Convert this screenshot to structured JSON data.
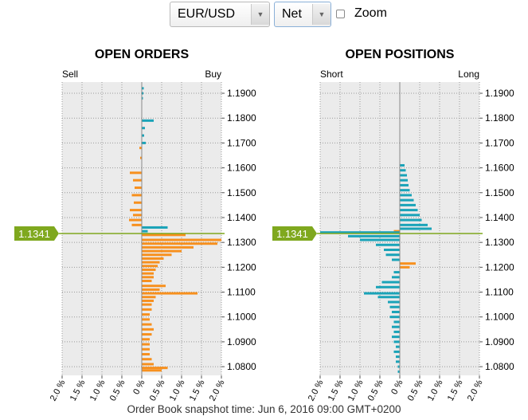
{
  "controls": {
    "pair_select": {
      "value": "EUR/USD"
    },
    "mode_select": {
      "value": "Net"
    },
    "zoom": {
      "label": "Zoom",
      "checked": false
    }
  },
  "current_price": "1.1341",
  "footer": "Order Book snapshot time: Jun 6, 2016 09:00 GMT+0200",
  "colors": {
    "up": "#1aa3b8",
    "down": "#f7901e",
    "price_line": "#7fa81e",
    "grid_bg": "#ebebeb"
  },
  "chart_data": [
    {
      "type": "bar",
      "orientation": "horizontal-diverging",
      "title": "OPEN ORDERS",
      "left_label": "Sell",
      "right_label": "Buy",
      "y_ticks": [
        "1.1900",
        "1.1800",
        "1.1700",
        "1.1600",
        "1.1500",
        "1.1400",
        "1.1300",
        "1.1200",
        "1.1100",
        "1.1000",
        "1.0900",
        "1.0800"
      ],
      "x_tick_labels": [
        "2.0 %",
        "1.5 %",
        "1.0 %",
        "0.5 %",
        "0 %",
        "0.5 %",
        "1.0 %",
        "1.5 %",
        "2.0 %"
      ],
      "ylim": [
        1.0765,
        1.1945
      ],
      "xlim": [
        -2.0,
        2.0
      ],
      "grid": true,
      "bars": [
        {
          "price": 1.192,
          "value": 0.05
        },
        {
          "price": 1.19,
          "value": 0.04
        },
        {
          "price": 1.188,
          "value": 0.03
        },
        {
          "price": 1.179,
          "value": 0.3
        },
        {
          "price": 1.176,
          "value": 0.08
        },
        {
          "price": 1.173,
          "value": 0.06
        },
        {
          "price": 1.17,
          "value": 0.1
        },
        {
          "price": 1.168,
          "value": -0.06
        },
        {
          "price": 1.164,
          "value": -0.04
        },
        {
          "price": 1.158,
          "value": -0.3
        },
        {
          "price": 1.155,
          "value": -0.22
        },
        {
          "price": 1.152,
          "value": -0.18
        },
        {
          "price": 1.149,
          "value": -0.25
        },
        {
          "price": 1.146,
          "value": -0.2
        },
        {
          "price": 1.143,
          "value": -0.3
        },
        {
          "price": 1.141,
          "value": -0.22
        },
        {
          "price": 1.139,
          "value": -0.32
        },
        {
          "price": 1.137,
          "value": -0.25
        },
        {
          "price": 1.136,
          "value": 0.65
        },
        {
          "price": 1.1345,
          "value": 0.15
        },
        {
          "price": 1.133,
          "value": 1.1
        },
        {
          "price": 1.131,
          "value": 2.0
        },
        {
          "price": 1.1295,
          "value": 1.9
        },
        {
          "price": 1.128,
          "value": 1.3
        },
        {
          "price": 1.1265,
          "value": 1.0
        },
        {
          "price": 1.125,
          "value": 0.75
        },
        {
          "price": 1.1235,
          "value": 0.55
        },
        {
          "price": 1.122,
          "value": 0.45
        },
        {
          "price": 1.1205,
          "value": 0.4
        },
        {
          "price": 1.119,
          "value": 0.35
        },
        {
          "price": 1.1175,
          "value": 0.3
        },
        {
          "price": 1.116,
          "value": 0.3
        },
        {
          "price": 1.1145,
          "value": 0.25
        },
        {
          "price": 1.1125,
          "value": 0.6
        },
        {
          "price": 1.111,
          "value": 0.45
        },
        {
          "price": 1.1095,
          "value": 1.4
        },
        {
          "price": 1.108,
          "value": 0.35
        },
        {
          "price": 1.1065,
          "value": 0.3
        },
        {
          "price": 1.105,
          "value": 0.25
        },
        {
          "price": 1.103,
          "value": 0.25
        },
        {
          "price": 1.101,
          "value": 0.2
        },
        {
          "price": 1.099,
          "value": 0.2
        },
        {
          "price": 1.097,
          "value": 0.25
        },
        {
          "price": 1.095,
          "value": 0.3
        },
        {
          "price": 1.093,
          "value": 0.25
        },
        {
          "price": 1.091,
          "value": 0.2
        },
        {
          "price": 1.089,
          "value": 0.2
        },
        {
          "price": 1.087,
          "value": 0.2
        },
        {
          "price": 1.085,
          "value": 0.2
        },
        {
          "price": 1.083,
          "value": 0.25
        },
        {
          "price": 1.081,
          "value": 0.3
        },
        {
          "price": 1.0795,
          "value": 0.65
        },
        {
          "price": 1.0785,
          "value": 0.5
        }
      ]
    },
    {
      "type": "bar",
      "orientation": "horizontal-diverging",
      "title": "OPEN POSITIONS",
      "left_label": "Short",
      "right_label": "Long",
      "y_ticks": [
        "1.1900",
        "1.1800",
        "1.1700",
        "1.1600",
        "1.1500",
        "1.1400",
        "1.1300",
        "1.1200",
        "1.1100",
        "1.1000",
        "1.0900",
        "1.0800"
      ],
      "x_tick_labels": [
        "2.0 %",
        "1.5 %",
        "1.0 %",
        "0.5 %",
        "0 %",
        "0.5 %",
        "1.0 %",
        "1.5 %",
        "2.0 %"
      ],
      "ylim": [
        1.0765,
        1.1945
      ],
      "xlim": [
        -2.0,
        2.0
      ],
      "grid": true,
      "bars": [
        {
          "price": 1.161,
          "value": 0.12
        },
        {
          "price": 1.159,
          "value": 0.15
        },
        {
          "price": 1.157,
          "value": 0.18
        },
        {
          "price": 1.155,
          "value": 0.2
        },
        {
          "price": 1.153,
          "value": 0.22
        },
        {
          "price": 1.151,
          "value": 0.25
        },
        {
          "price": 1.149,
          "value": 0.3
        },
        {
          "price": 1.147,
          "value": 0.35
        },
        {
          "price": 1.145,
          "value": 0.4
        },
        {
          "price": 1.143,
          "value": 0.45
        },
        {
          "price": 1.141,
          "value": 0.5
        },
        {
          "price": 1.139,
          "value": 0.55
        },
        {
          "price": 1.137,
          "value": 0.7
        },
        {
          "price": 1.1355,
          "value": 0.8
        },
        {
          "price": 1.1345,
          "value": -0.15
        },
        {
          "price": 1.134,
          "value": -2.0
        },
        {
          "price": 1.1325,
          "value": -1.3
        },
        {
          "price": 1.131,
          "value": -1.0
        },
        {
          "price": 1.129,
          "value": -0.6
        },
        {
          "price": 1.127,
          "value": -0.4
        },
        {
          "price": 1.125,
          "value": -0.35
        },
        {
          "price": 1.123,
          "value": -0.2
        },
        {
          "price": 1.1215,
          "value": 0.4
        },
        {
          "price": 1.12,
          "value": 0.25
        },
        {
          "price": 1.118,
          "value": -0.15
        },
        {
          "price": 1.116,
          "value": -0.2
        },
        {
          "price": 1.114,
          "value": -0.45
        },
        {
          "price": 1.112,
          "value": -0.6
        },
        {
          "price": 1.1095,
          "value": -0.9
        },
        {
          "price": 1.108,
          "value": -0.55
        },
        {
          "price": 1.106,
          "value": -0.3
        },
        {
          "price": 1.104,
          "value": -0.25
        },
        {
          "price": 1.102,
          "value": -0.2
        },
        {
          "price": 1.1,
          "value": -0.25
        },
        {
          "price": 1.098,
          "value": -0.15
        },
        {
          "price": 1.096,
          "value": -0.2
        },
        {
          "price": 1.094,
          "value": -0.15
        },
        {
          "price": 1.092,
          "value": -0.2
        },
        {
          "price": 1.09,
          "value": -0.15
        },
        {
          "price": 1.088,
          "value": -0.1
        },
        {
          "price": 1.086,
          "value": -0.15
        },
        {
          "price": 1.084,
          "value": -0.1
        },
        {
          "price": 1.082,
          "value": -0.1
        },
        {
          "price": 1.08,
          "value": -0.05
        },
        {
          "price": 1.078,
          "value": -0.05
        }
      ]
    }
  ]
}
